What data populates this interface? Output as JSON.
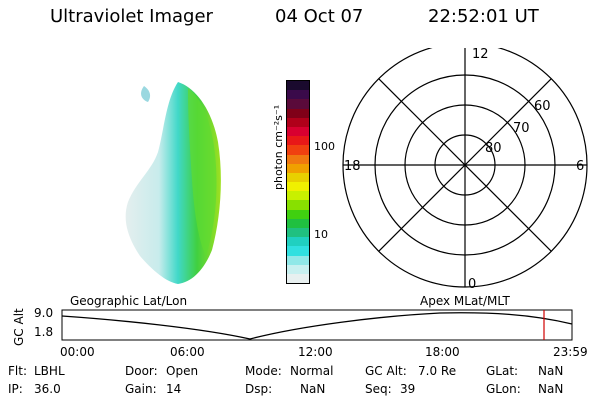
{
  "header": {
    "title": "Ultraviolet Imager",
    "date": "04 Oct 07",
    "time": "22:52:01 UT"
  },
  "colorbar": {
    "unit_label": "photon cm⁻²s⁻¹",
    "ticks": [
      "100",
      "10"
    ],
    "colors": [
      "#1a0a2e",
      "#3a0a4a",
      "#5a0a3a",
      "#800018",
      "#b0001a",
      "#d80030",
      "#e81818",
      "#f04010",
      "#f07810",
      "#f0a000",
      "#e8d000",
      "#f0f000",
      "#c8f000",
      "#88e000",
      "#40d010",
      "#20c040",
      "#20c080",
      "#20d0c0",
      "#30e0e0",
      "#90e8e8",
      "#c8f0f0",
      "#e8f0f0"
    ]
  },
  "polar": {
    "labels": {
      "top": "12",
      "left": "18",
      "right": "6",
      "bottom": "0"
    },
    "ring_labels": [
      "60",
      "70",
      "80"
    ]
  },
  "strip": {
    "left_title": "Geographic Lat/Lon",
    "right_title": "Apex  MLat/MLT",
    "ylabel": "GC Alt",
    "yticks": [
      "9.0",
      "1.8"
    ],
    "xticks": [
      "00:00",
      "06:00",
      "12:00",
      "18:00",
      "23:59"
    ]
  },
  "info": {
    "row1": [
      {
        "label": "Flt:",
        "value": "LBHL"
      },
      {
        "label": "Door:",
        "value": "Open"
      },
      {
        "label": "Mode:",
        "value": "Normal"
      },
      {
        "label": "GC Alt:",
        "value": "7.0 Re"
      },
      {
        "label": "GLat:",
        "value": "NaN"
      }
    ],
    "row2": [
      {
        "label": "IP:",
        "value": "36.0"
      },
      {
        "label": "Gain:",
        "value": "14"
      },
      {
        "label": "Dsp:",
        "value": "NaN"
      },
      {
        "label": "Seq:",
        "value": "39"
      },
      {
        "label": "GLon:",
        "value": "NaN"
      }
    ]
  }
}
